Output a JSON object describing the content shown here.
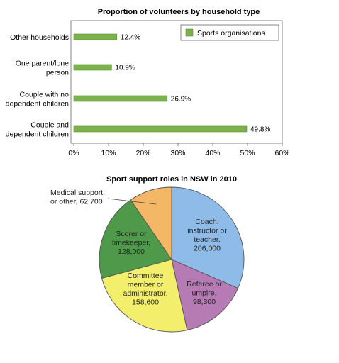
{
  "chart_data": [
    {
      "type": "bar",
      "orientation": "horizontal",
      "title": "Proportion of volunteers by household type",
      "categories": [
        [
          "Other households"
        ],
        [
          "One parent/lone",
          "person"
        ],
        [
          "Couple with no",
          "dependent children"
        ],
        [
          "Couple and",
          "dependent children"
        ]
      ],
      "series": [
        {
          "name": "Sports organisations",
          "values": [
            12.4,
            10.9,
            26.9,
            49.8
          ],
          "labels": [
            "12.4%",
            "10.9%",
            "26.9%",
            "49.8%"
          ]
        }
      ],
      "xlim": [
        0,
        60
      ],
      "xticks": [
        "0%",
        "10%",
        "20%",
        "30%",
        "40%",
        "50%",
        "60%"
      ],
      "grid": false,
      "legend": "top-right",
      "colors": {
        "bar": "#7cb24b",
        "bar_edge": "#5b8f34"
      }
    },
    {
      "type": "pie",
      "title": "Sport support roles in NSW in 2010",
      "slices": [
        {
          "label": [
            "Coach,",
            "instructor or",
            "teacher,",
            "206,000"
          ],
          "value": 206000,
          "color": "#8fbbe8"
        },
        {
          "label": [
            "Referee or",
            "umpire,",
            "98,300"
          ],
          "value": 98300,
          "color": "#b67ab4"
        },
        {
          "label": [
            "Committee",
            "member or",
            "administrator,",
            "158,600"
          ],
          "value": 158600,
          "color": "#f3ee6c"
        },
        {
          "label": [
            "Scorer or",
            "timekeeper,",
            "128,000"
          ],
          "value": 128000,
          "color": "#4f9a4a"
        },
        {
          "label": [
            "Medical support",
            "or other, 62,700"
          ],
          "value": 62700,
          "color": "#f4b766"
        }
      ]
    }
  ]
}
